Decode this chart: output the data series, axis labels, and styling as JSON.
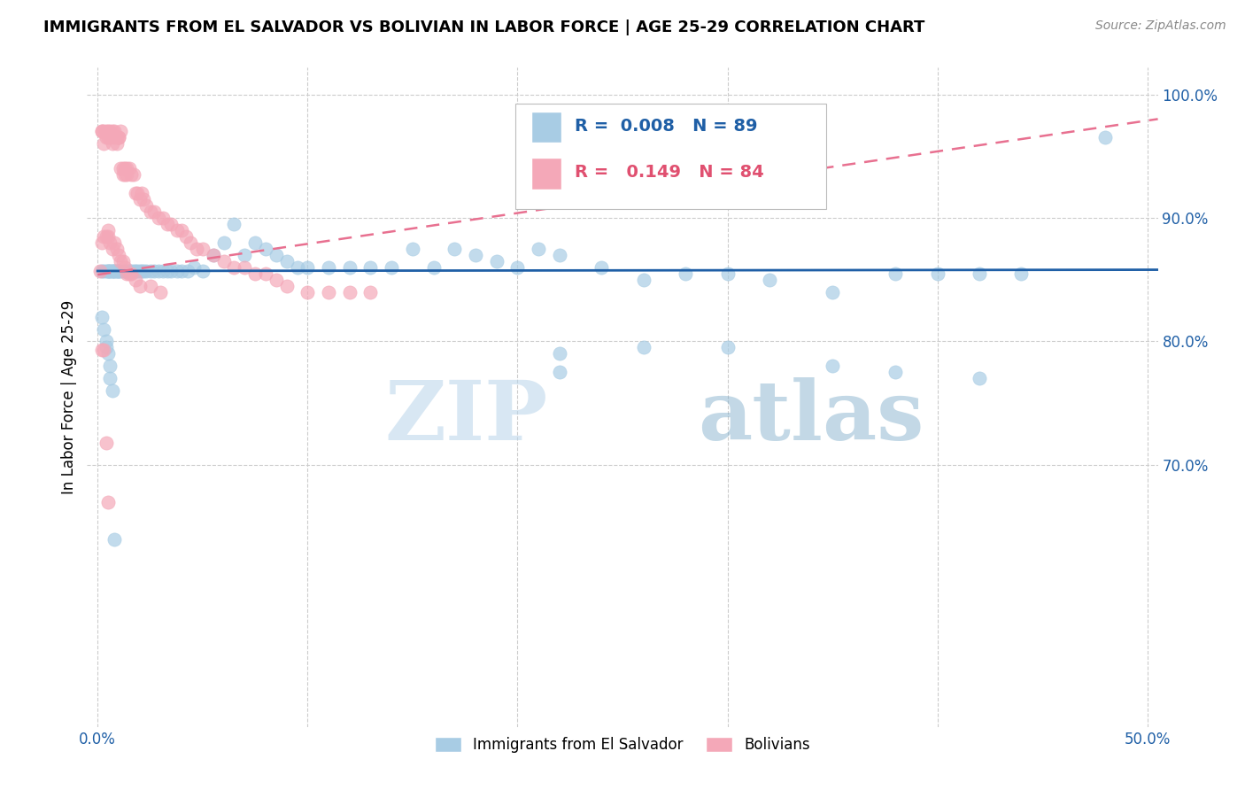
{
  "title": "IMMIGRANTS FROM EL SALVADOR VS BOLIVIAN IN LABOR FORCE | AGE 25-29 CORRELATION CHART",
  "source": "Source: ZipAtlas.com",
  "ylabel": "In Labor Force | Age 25-29",
  "xlim": [
    -0.005,
    0.505
  ],
  "ylim": [
    0.488,
    1.022
  ],
  "xticks": [
    0.0,
    0.1,
    0.2,
    0.3,
    0.4,
    0.5
  ],
  "xticklabels": [
    "0.0%",
    "",
    "",
    "",
    "",
    "50.0%"
  ],
  "yticks_right": [
    0.7,
    0.8,
    0.9,
    1.0
  ],
  "yticklabels_right": [
    "70.0%",
    "80.0%",
    "90.0%",
    "100.0%"
  ],
  "blue_R": "0.008",
  "blue_N": "89",
  "pink_R": "0.149",
  "pink_N": "84",
  "blue_color": "#a8cce4",
  "pink_color": "#f4a8b8",
  "blue_line_color": "#1f5fa6",
  "pink_line_color": "#e87090",
  "watermark_zip": "ZIP",
  "watermark_atlas": "atlas",
  "legend_label_blue": "Immigrants from El Salvador",
  "legend_label_pink": "Bolivians",
  "blue_scatter_x": [
    0.002,
    0.003,
    0.004,
    0.005,
    0.005,
    0.006,
    0.006,
    0.007,
    0.007,
    0.008,
    0.008,
    0.009,
    0.009,
    0.01,
    0.01,
    0.011,
    0.012,
    0.013,
    0.014,
    0.015,
    0.015,
    0.016,
    0.017,
    0.018,
    0.019,
    0.02,
    0.021,
    0.022,
    0.023,
    0.025,
    0.027,
    0.029,
    0.031,
    0.033,
    0.035,
    0.038,
    0.04,
    0.043,
    0.046,
    0.05,
    0.055,
    0.06,
    0.065,
    0.07,
    0.075,
    0.08,
    0.085,
    0.09,
    0.095,
    0.1,
    0.11,
    0.12,
    0.13,
    0.14,
    0.15,
    0.16,
    0.17,
    0.18,
    0.19,
    0.2,
    0.21,
    0.22,
    0.24,
    0.26,
    0.28,
    0.3,
    0.32,
    0.35,
    0.38,
    0.4,
    0.42,
    0.44,
    0.22,
    0.26,
    0.3,
    0.35,
    0.22,
    0.38,
    0.42,
    0.48,
    0.002,
    0.003,
    0.004,
    0.004,
    0.005,
    0.006,
    0.006,
    0.007,
    0.008
  ],
  "blue_scatter_y": [
    0.857,
    0.857,
    0.857,
    0.857,
    0.857,
    0.857,
    0.857,
    0.857,
    0.857,
    0.857,
    0.857,
    0.857,
    0.857,
    0.857,
    0.857,
    0.857,
    0.857,
    0.857,
    0.857,
    0.857,
    0.857,
    0.857,
    0.857,
    0.857,
    0.857,
    0.857,
    0.857,
    0.857,
    0.857,
    0.857,
    0.857,
    0.857,
    0.857,
    0.857,
    0.857,
    0.857,
    0.857,
    0.857,
    0.86,
    0.857,
    0.87,
    0.88,
    0.895,
    0.87,
    0.88,
    0.875,
    0.87,
    0.865,
    0.86,
    0.86,
    0.86,
    0.86,
    0.86,
    0.86,
    0.875,
    0.86,
    0.875,
    0.87,
    0.865,
    0.86,
    0.875,
    0.87,
    0.86,
    0.85,
    0.855,
    0.855,
    0.85,
    0.84,
    0.855,
    0.855,
    0.855,
    0.855,
    0.79,
    0.795,
    0.795,
    0.78,
    0.775,
    0.775,
    0.77,
    0.965,
    0.82,
    0.81,
    0.8,
    0.795,
    0.79,
    0.78,
    0.77,
    0.76,
    0.64
  ],
  "pink_scatter_x": [
    0.001,
    0.002,
    0.002,
    0.003,
    0.003,
    0.004,
    0.004,
    0.005,
    0.005,
    0.006,
    0.006,
    0.007,
    0.007,
    0.008,
    0.008,
    0.009,
    0.009,
    0.01,
    0.01,
    0.011,
    0.011,
    0.012,
    0.012,
    0.013,
    0.013,
    0.014,
    0.014,
    0.015,
    0.016,
    0.017,
    0.018,
    0.019,
    0.02,
    0.021,
    0.022,
    0.023,
    0.025,
    0.027,
    0.029,
    0.031,
    0.033,
    0.035,
    0.038,
    0.04,
    0.042,
    0.044,
    0.047,
    0.05,
    0.055,
    0.06,
    0.065,
    0.07,
    0.075,
    0.08,
    0.085,
    0.09,
    0.1,
    0.11,
    0.12,
    0.13,
    0.002,
    0.003,
    0.004,
    0.005,
    0.005,
    0.006,
    0.007,
    0.008,
    0.009,
    0.01,
    0.011,
    0.012,
    0.013,
    0.014,
    0.015,
    0.016,
    0.018,
    0.02,
    0.025,
    0.03,
    0.002,
    0.003,
    0.004,
    0.005
  ],
  "pink_scatter_y": [
    0.857,
    0.97,
    0.97,
    0.97,
    0.96,
    0.97,
    0.965,
    0.965,
    0.97,
    0.965,
    0.97,
    0.97,
    0.96,
    0.97,
    0.965,
    0.965,
    0.96,
    0.965,
    0.965,
    0.97,
    0.94,
    0.94,
    0.935,
    0.94,
    0.935,
    0.935,
    0.94,
    0.94,
    0.935,
    0.935,
    0.92,
    0.92,
    0.915,
    0.92,
    0.915,
    0.91,
    0.905,
    0.905,
    0.9,
    0.9,
    0.895,
    0.895,
    0.89,
    0.89,
    0.885,
    0.88,
    0.875,
    0.875,
    0.87,
    0.865,
    0.86,
    0.86,
    0.855,
    0.855,
    0.85,
    0.845,
    0.84,
    0.84,
    0.84,
    0.84,
    0.88,
    0.885,
    0.885,
    0.885,
    0.89,
    0.88,
    0.875,
    0.88,
    0.875,
    0.87,
    0.865,
    0.865,
    0.86,
    0.855,
    0.855,
    0.855,
    0.85,
    0.845,
    0.845,
    0.84,
    0.793,
    0.793,
    0.718,
    0.67
  ]
}
